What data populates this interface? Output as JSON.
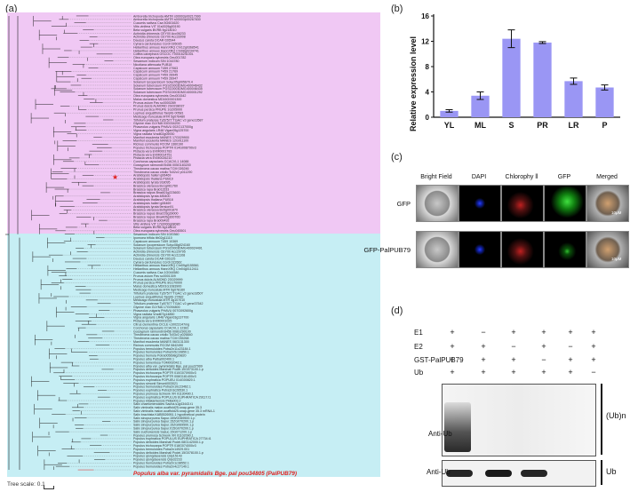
{
  "panels": {
    "a": "(a)",
    "b": "(b)",
    "c": "(c)",
    "d": "(d)"
  },
  "tree": {
    "scale_label": "Tree scale: 0.1",
    "highlight_label": "Populus alba var. pyramidalis Bge. pal pou34805 (PalPUB79)",
    "clade_colors": {
      "upper": "#f0c8f4",
      "lower": "#c6eef4",
      "highlight": "#e0201e",
      "star": "#e0201e"
    },
    "species": [
      "Amborella trichopoda AMTR s00003p00217990",
      "Amborella trichopoda AMTR s00003p00267830",
      "Cucumis sativus Csa 5G601620",
      "Vitis vinifera VIT 01s0026g00190",
      "Beta vulgaris BVRB 9g218010",
      "Actinidia chinensis CEY00 Acc06233",
      "Actinidia chinensis CEY00 Acc33008",
      "Daucus carota DCAR 026544",
      "Cynara cardunculus CcrdI 026035",
      "Helianthus annuus HannXRQ Chr12g0368541",
      "Helianthus annuus HannXRQ Chr08g0234741",
      "Coffea canephora GSCOC T00016241001",
      "Olea europaea sylvestris Oeu001782",
      "Sesamum indicum SIN 1016780",
      "Nicotiana attenuata PUB18",
      "Capsicum annuum T459 27063",
      "Capsicum annuum T459 21769",
      "Capsicum annuum T459 26945",
      "Capsicum annuum T459 26947",
      "Solanum lycopersicum Solyc05g005670.4",
      "Solanum tuberosum PGSC0003DMG400046432",
      "Solanum tuberosum PGSC0003DMG400046435",
      "Solanum tuberosum PGSC0003DMG400001292",
      "Olea europaea sylvestris Oeu001542",
      "Malus domestica MD16G0001300",
      "Prunus avium Pav sc0000289",
      "Prunus dulcis ALMOND 2G0238037",
      "Prunus persica PRUPE 1G205000",
      "Lupinus angustifolius TanjilG 00581",
      "Medicago truncatula MTR 5g076480",
      "Trifolium pratense Tp57577 TGAC v2 gene13587",
      "Glycine max GLYMA 03G034200",
      "Phaseolus vulgaris PHAVU 002G137000g",
      "Vigna angularis LR48 Vigan05g125700",
      "Vigna radiata Vradi02g05930",
      "Manihot esculenta MANES 17G029900",
      "Manihot esculenta MANES 12G011100",
      "Ricinus communis RCOM 1360190",
      "Populus trichocarpa POPTR 014G008790v3",
      "Pistacia vera EVM0001783",
      "Pistacia vera EVM0014751",
      "Pistacia vera EVM0026210",
      "Corchorus capsularis CCACVL1 14088",
      "Gossypium raimondii B456 005G183200",
      "Theobroma cacao matina TCM 026246",
      "Theobroma cacao criollo Tc02v2 p011290",
      "Arabidopsis halleri g06469",
      "Arabidopsis thaliana PUB19",
      "Arabidopsis lyrata 918095",
      "Brassica oleracea Bo1g061760",
      "Brassica rapa Bra011533",
      "Brassica napus BnaA01g22360D",
      "Arabidopsis lyrata 485400",
      "Arabidopsis thaliana PUB18",
      "Arabidopsis halleri g06469",
      "Arabidopsis lyrata 9ersion91",
      "Brassica oleracea Bo5g091870",
      "Brassica napus BnaC03g39000",
      "Brassica napus BnaA05g30070D",
      "Brassica rapa Bra009492",
      "Vitis vinifera VIT 17s0000g08080",
      "Beta vulgaris BVRB 5g118610",
      "Olea europaea sylvestris Oeu045501",
      "Sesamum indicum SIN 1020360",
      "Ipomoea trifida itb02g11110",
      "Capsicum annuum T459 10369",
      "Solanum lycopersicum Solyc08g024160",
      "Solanum tuberosum PGSC0003DMG400024491",
      "Actinidia chinensis CEY00 Acc29795",
      "Actinidia chinensis CEY00 Acc11108",
      "Daucus carota DCAR 026125",
      "Cynara cardunculus CcrdI 022662",
      "Helianthus annuus HannXRQ Chr09g0155561",
      "Helianthus annuus HannXRQ Chr04g0112411",
      "Cucumis sativus Csa 1G044580",
      "Prunus avium Pav sc0001309",
      "Prunus dulcis ALMOND 2G029999",
      "Prunus persica PRUPE 8G170000",
      "Malus domestica MD01G1083900",
      "Medicago truncatula MTR 5g078160",
      "Trifolium pratense Tp57577 TGAC v2 gene18507",
      "Lupinus angustifolius TanjilG 27482",
      "Medicago truncatula MTR 3g107010",
      "Trifolium pratense Tp57577 TGAC v2 gene37542",
      "Glycine max GLYMA 17G094800",
      "Phaseolus vulgaris PHAVU 007G092600g",
      "Vigna radiata Vradi07g14850",
      "Vigna angularis LR48 Vigan03g137700",
      "Pistacia vera EVM0001025",
      "Citrus clementina CICLE v10023147mg",
      "Corchorus capsularis CCACVL1 12381",
      "Gossypium raimondii B456 008G290100",
      "Theobroma cacao criollo Tc03v2 p026840",
      "Theobroma cacao matina TCM 035268",
      "Manihot esculenta MANES 06G131300",
      "Ricinus communis RCOM 0842490",
      "Populus tremuloides Potra2n11c23184.1",
      "Populus tremuloides Potra2n5c10850.1",
      "Populus tremula Potra005698g29820",
      "Populus alba Palba002400.1",
      "Populus tomentosa TOM002042.1",
      "Populus alba var. pyramidalis Bge. pal pou37909",
      "Populus deltoides Marshall Podel.10G073100.1.p",
      "Populus trichocarpa POPTR 010G070900v3",
      "Populus trichocarpa POPTR 008G181400v3",
      "Populus euphratica POPUEU 014G00820.1",
      "Populus simonii Simonii003021",
      "Populus tremuloides Potra2n10c23462.1",
      "Populus euphratica Potra2n3c26530.1",
      "Populus pruinosa Schrenk XR 01130490.1",
      "Populus euphratica POPULUS EUPHRATICA 29117.t1",
      "Populus kitakamiensis Pkita003.2",
      "Salix chaetomenoides Sacha.s1g43443.t1",
      "Salix viminalis malon-scaffold25-snap-gene 35.3",
      "Salix viminalis malon-scaffold25-snap-gene 35.3 mRNA-1",
      "Salix brachista KAB5526951.1 hypothetical protein",
      "Salix sinopurpurea Sapur.15WG069500.1.p",
      "Salix sinopurpurea Sapur.15ZG070200.1.p",
      "Salix sinopurpurea Sapur.15ZG069500.1.p",
      "Salix sinopurpurea Sapur.015G070200.1.p",
      "Salix suchowensis Sasuc.15G071200.1.p",
      "Populus pruinosa Schrenk XR 01102090.1",
      "Populus euphratica POPULUS EUPHRATICA 27734.t1",
      "Populus deltoides Marshall Podel.08G142000.1.p",
      "Populus trichocarpa POPTR 018G074000v3",
      "Populus tremuloides Potra2n14929.001",
      "Populus deltoides Marshall Podel.15G078100.1.p",
      "Populus qiongdaoensis Qdy15143",
      "Populus qiongdaoensis Qdy32233",
      "Populus tremuloides Potra2n1c38552.1",
      "Populus tremuloides Potra2n4c27149.1",
      "Populus alba var. pyramidalis Bge. pal pou34805"
    ]
  },
  "bar_chart": {
    "chart_data": {
      "type": "bar",
      "categories": [
        "YL",
        "ML",
        "S",
        "PR",
        "LR",
        "P"
      ],
      "values": [
        1.0,
        3.4,
        12.4,
        11.8,
        5.7,
        4.7
      ],
      "errors": [
        0.2,
        0.6,
        1.4,
        0.15,
        0.5,
        0.4
      ],
      "ylabel": "Relative expression level",
      "ylim": [
        0,
        16
      ],
      "yticks": [
        0,
        4,
        8,
        12,
        16
      ],
      "bar_color": "#9a96f4",
      "grid": false
    }
  },
  "microscopy": {
    "column_headers": [
      "Bright Field",
      "DAPI",
      "Chlorophy ll",
      "GFP",
      "Merged"
    ],
    "row_labels": [
      "GFP",
      "GFP-PalPUB79"
    ],
    "scale_bar": "10μM"
  },
  "western": {
    "row_labels": [
      "E1",
      "E2",
      "GST-PalPUB79",
      "Ub"
    ],
    "signs": [
      [
        "+",
        "−",
        "+",
        "+",
        "+",
        "+"
      ],
      [
        "+",
        "+",
        "−",
        "+",
        "−",
        "+"
      ],
      [
        "+",
        "+",
        "+",
        "−",
        "+",
        "+"
      ],
      [
        "+",
        "+",
        "+",
        "+",
        "+",
        "−"
      ]
    ],
    "blot_label_top": "Anti-Ub",
    "blot_label_bottom": "Anti-Ub",
    "right_label_top": "(Ub)n",
    "right_label_bottom": "Ub"
  }
}
